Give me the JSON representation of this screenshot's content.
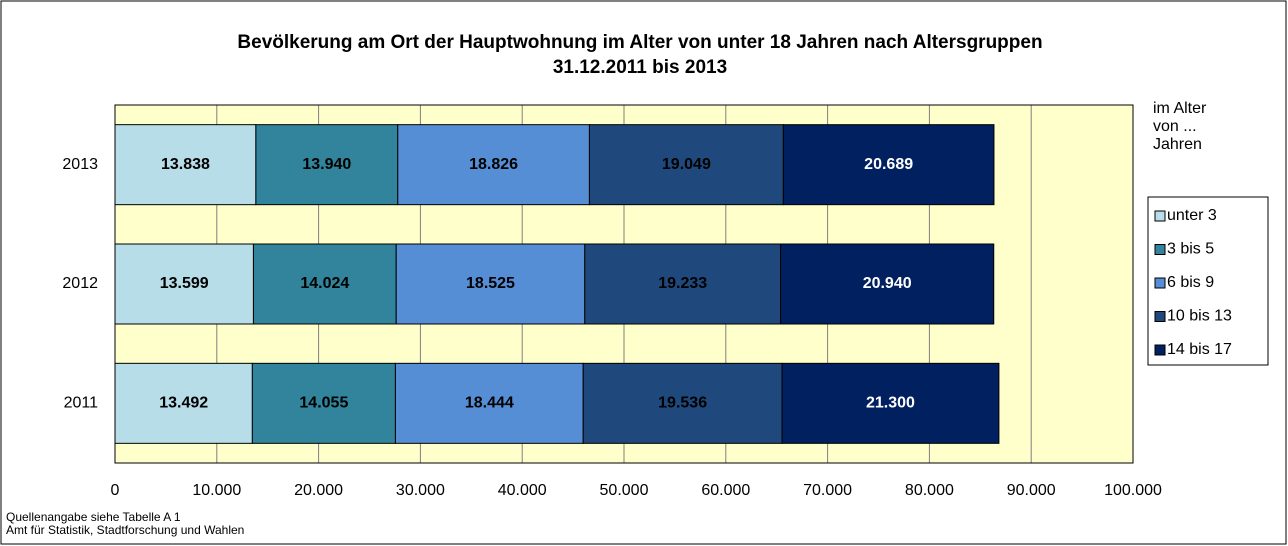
{
  "chart_data": {
    "type": "stacked_barh",
    "title": "Bevölkerung am Ort der Hauptwohnung im Alter von unter 18 Jahren nach Altersgruppen",
    "subtitle": "31.12.2011 bis 2013",
    "legend_title": "im Alter von ... Jahren",
    "categories": [
      "2013",
      "2012",
      "2011"
    ],
    "series": [
      {
        "name": "unter 3",
        "color": "#b7dde8",
        "values": [
          13838,
          13599,
          13492
        ],
        "value_labels": [
          "13.838",
          "13.599",
          "13.492"
        ]
      },
      {
        "name": "3 bis 5",
        "color": "#31849b",
        "values": [
          13940,
          14024,
          14055
        ],
        "value_labels": [
          "13.940",
          "14.024",
          "14.055"
        ]
      },
      {
        "name": "6 bis 9",
        "color": "#558ed5",
        "values": [
          18826,
          18525,
          18444
        ],
        "value_labels": [
          "18.826",
          "18.525",
          "18.444"
        ]
      },
      {
        "name": "10 bis 13",
        "color": "#1f497d",
        "values": [
          19049,
          19233,
          19536
        ],
        "value_labels": [
          "19.049",
          "19.233",
          "19.536"
        ]
      },
      {
        "name": "14 bis 17",
        "color": "#002060",
        "values": [
          20689,
          20940,
          21300
        ],
        "value_labels": [
          "20.689",
          "20.940",
          "21.300"
        ]
      }
    ],
    "xlim": [
      0,
      100000
    ],
    "xticks": [
      0,
      {
        "value": 10000,
        "label": "10.000"
      },
      {
        "value": 20000,
        "label": "20.000"
      },
      {
        "value": 30000,
        "label": "30.000"
      },
      {
        "value": 40000,
        "label": "40.000"
      },
      {
        "value": 50000,
        "label": "50.000"
      },
      {
        "value": 60000,
        "label": "60.000"
      },
      {
        "value": 70000,
        "label": "70.000"
      },
      {
        "value": 80000,
        "label": "80.000"
      },
      {
        "value": 90000,
        "label": "90.000"
      },
      {
        "value": 100000,
        "label": "100.000"
      }
    ],
    "grid": true,
    "legend_position": "right",
    "footnotes": [
      "Quellenangabe siehe Tabelle A 1",
      "Amt für Statistik, Stadtforschung und Wahlen"
    ]
  }
}
